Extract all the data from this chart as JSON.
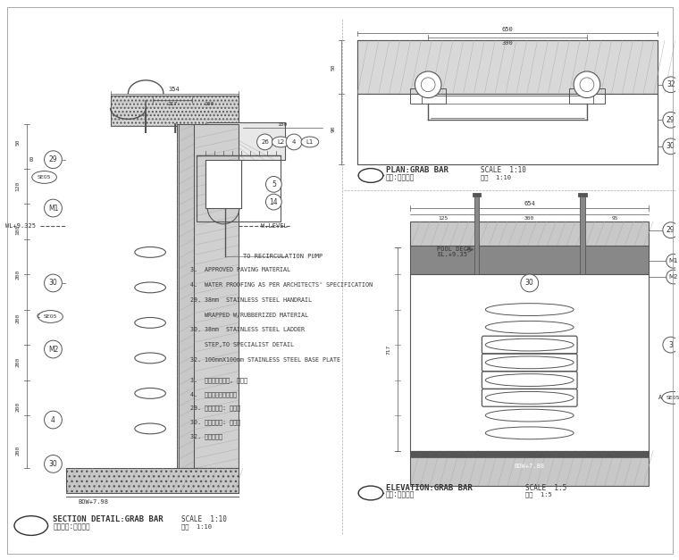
{
  "bg_color": "#f5f5f0",
  "line_color": "#555555",
  "dark_color": "#333333",
  "title_color": "#222222",
  "hatch_color": "#888888",
  "title1": "SECTION DETAIL:GRAB BAR",
  "subtitle1": "截面大样:池拸扶手",
  "scale1": "SCALE  1:10",
  "scale1_cn": "比例  1:10",
  "title2": "PLAN:GRAB BAR",
  "subtitle2": "平面:池拸扶手",
  "scale2": "SCALE  1:10",
  "scale2_cn": "比例  1:10",
  "title3": "ELEVATION:GRAB BAR",
  "subtitle3": "立面:池拸扶手",
  "scale3": "SCALE  1:5",
  "scale3_cn": "比例  1:5",
  "notes_en": [
    "3.  APPROVED PAVING MATERIAL",
    "4.  WATER PROOFING AS PER ARCHITECTS' SPECIFICATION",
    "29. 38mm  STAINLESS STEEL HANDRAIL",
    "    WRAPPED W/RUBBERIZED MATERIAL",
    "30. 38mm  STAINLESS STEEL LADDER",
    "    STEP,TO SPECIALIST DETAIL",
    "32. 100mmX100mm STAINLESS STEEL BASE PLATE"
  ],
  "notes_cn": [
    "3.  批准之铺地材料, 见公平",
    "4.  防水层见建筑师指定",
    "29. 不锈锂扶手: 见公平",
    "30. 不锈锂扶手: 见公平",
    "32. 不锈锂底板"
  ]
}
